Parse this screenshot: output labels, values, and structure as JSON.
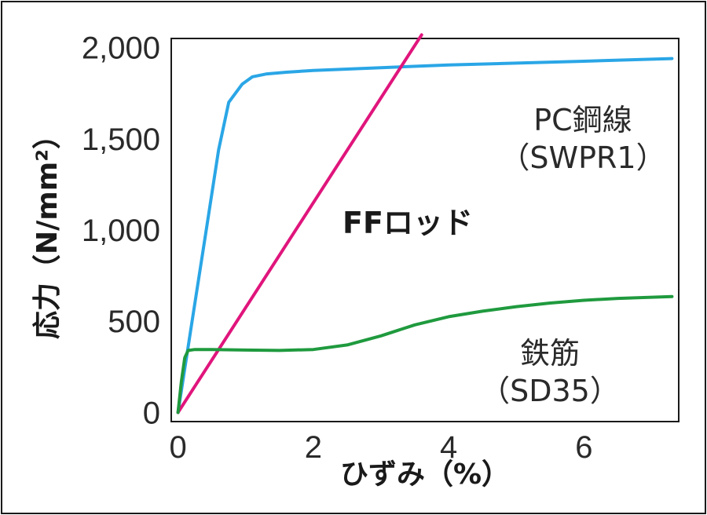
{
  "chart_data": {
    "type": "line",
    "xlabel": "ひずみ（%）",
    "ylabel": "応力（N/mm²）",
    "xlim": [
      -0.1,
      7.4
    ],
    "ylim": [
      -50,
      2050
    ],
    "x_ticks": [
      0,
      2,
      4,
      6
    ],
    "x_tick_labels": [
      "0",
      "2",
      "4",
      "6"
    ],
    "y_ticks": [
      0,
      500,
      1000,
      1500,
      2000
    ],
    "y_tick_labels": [
      "0",
      "500",
      "1,000",
      "1,500",
      "2,000"
    ],
    "grid": false,
    "series": [
      {
        "name": "PC鋼線（SWPR1）",
        "label_lines": [
          "PC鋼線",
          "（SWPR1）"
        ],
        "color": "#2aa6e6",
        "x": [
          0,
          0.2,
          0.4,
          0.6,
          0.75,
          0.85,
          0.95,
          1.1,
          1.3,
          1.6,
          2.0,
          3.0,
          4.0,
          5.0,
          6.0,
          7.3
        ],
        "y": [
          0,
          480,
          960,
          1440,
          1700,
          1750,
          1800,
          1840,
          1855,
          1865,
          1875,
          1890,
          1905,
          1915,
          1925,
          1940
        ]
      },
      {
        "name": "FFロッド",
        "label_lines": [
          "FFロッド"
        ],
        "color": "#e0157c",
        "x": [
          0,
          3.6
        ],
        "y": [
          0,
          2070
        ]
      },
      {
        "name": "鉄筋（SD35）",
        "label_lines": [
          "鉄筋",
          "（SD35）"
        ],
        "color": "#1f9a3e",
        "x": [
          0,
          0.05,
          0.1,
          0.15,
          0.25,
          0.5,
          1.0,
          1.5,
          2.0,
          2.5,
          3.0,
          3.5,
          4.0,
          4.5,
          5.0,
          5.5,
          6.0,
          6.5,
          7.3
        ],
        "y": [
          0,
          170,
          300,
          340,
          345,
          345,
          342,
          340,
          345,
          370,
          420,
          480,
          525,
          555,
          580,
          600,
          615,
          625,
          635
        ]
      }
    ]
  }
}
